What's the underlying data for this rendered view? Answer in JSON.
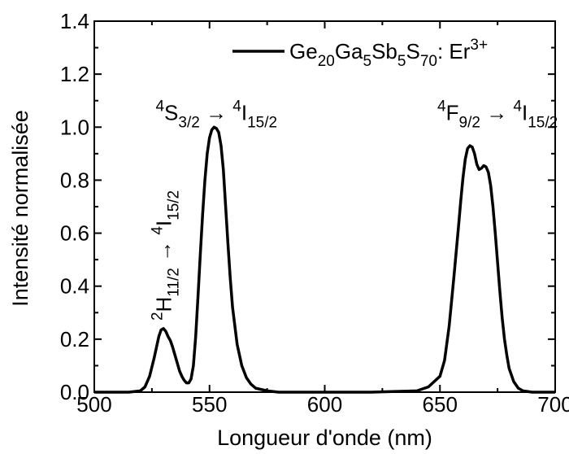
{
  "chart_data": {
    "type": "line",
    "title": "",
    "xlabel": "Longueur d'onde (nm)",
    "ylabel": "Intensité normalisée",
    "xlim": [
      500,
      700
    ],
    "ylim": [
      0.0,
      1.4
    ],
    "xticks": [
      "500",
      "550",
      "600",
      "650",
      "700"
    ],
    "yticks": [
      "0.0",
      "0.2",
      "0.4",
      "0.6",
      "0.8",
      "1.0",
      "1.2",
      "1.4"
    ],
    "grid": false,
    "legend_position": "top-right",
    "line_color": "#000000",
    "series": [
      {
        "name": "Ge20Ga5Sb5S70: Er3+",
        "legend": {
          "base": [
            "Ge",
            "Ga",
            "Sb",
            "S",
            ": Er"
          ],
          "subs": [
            "20",
            "5",
            "5",
            "70"
          ],
          "sup": "3+"
        },
        "x": [
          500,
          515,
          520,
          522,
          524,
          526,
          527,
          528,
          529,
          530,
          531,
          532,
          533,
          534,
          535,
          536,
          537,
          538,
          539,
          540,
          541,
          542,
          543,
          544,
          545,
          546,
          547,
          548,
          549,
          550,
          551,
          552,
          553,
          554,
          555,
          556,
          557,
          558,
          559,
          560,
          562,
          564,
          566,
          568,
          570,
          575,
          580,
          600,
          620,
          640,
          645,
          650,
          652,
          654,
          656,
          658,
          659,
          660,
          661,
          662,
          663,
          664,
          665,
          666,
          667,
          668,
          669,
          670,
          671,
          672,
          673,
          674,
          675,
          676,
          677,
          678,
          679,
          680,
          682,
          684,
          686,
          690,
          700
        ],
        "y": [
          0.0,
          0.0,
          0.005,
          0.02,
          0.06,
          0.13,
          0.17,
          0.21,
          0.235,
          0.24,
          0.23,
          0.21,
          0.195,
          0.17,
          0.14,
          0.11,
          0.08,
          0.06,
          0.045,
          0.035,
          0.035,
          0.05,
          0.1,
          0.21,
          0.36,
          0.52,
          0.67,
          0.8,
          0.9,
          0.96,
          0.99,
          1.0,
          0.995,
          0.98,
          0.93,
          0.84,
          0.7,
          0.56,
          0.43,
          0.32,
          0.18,
          0.1,
          0.055,
          0.03,
          0.015,
          0.005,
          0.0,
          0.0,
          0.0,
          0.005,
          0.02,
          0.06,
          0.12,
          0.25,
          0.43,
          0.62,
          0.72,
          0.81,
          0.88,
          0.92,
          0.93,
          0.925,
          0.9,
          0.86,
          0.84,
          0.845,
          0.855,
          0.85,
          0.83,
          0.78,
          0.7,
          0.6,
          0.49,
          0.38,
          0.28,
          0.2,
          0.14,
          0.09,
          0.04,
          0.015,
          0.005,
          0.0,
          0.0
        ]
      }
    ],
    "annotations": [
      {
        "id": "s32",
        "at": [
          553,
          1.1
        ],
        "parts": [
          [
            "sup",
            "4"
          ],
          [
            "base",
            "S"
          ],
          [
            "sub",
            "3/2"
          ],
          [
            "base",
            " → "
          ],
          [
            "sup",
            "4"
          ],
          [
            "base",
            "I"
          ],
          [
            "sub",
            "15/2"
          ]
        ],
        "rotate": 0
      },
      {
        "id": "f92",
        "at": [
          675,
          1.1
        ],
        "parts": [
          [
            "sup",
            "4"
          ],
          [
            "base",
            "F"
          ],
          [
            "sub",
            "9/2"
          ],
          [
            "base",
            " → "
          ],
          [
            "sup",
            "4"
          ],
          [
            "base",
            "I"
          ],
          [
            "sub",
            "15/2"
          ]
        ],
        "rotate": 0
      },
      {
        "id": "h112",
        "at": [
          532,
          0.27
        ],
        "parts": [
          [
            "sup",
            "2"
          ],
          [
            "base",
            "H"
          ],
          [
            "sub",
            "11/2"
          ],
          [
            "base",
            " → "
          ],
          [
            "sup",
            "4"
          ],
          [
            "base",
            "I"
          ],
          [
            "sub",
            "15/2"
          ]
        ],
        "rotate": -90
      }
    ]
  }
}
